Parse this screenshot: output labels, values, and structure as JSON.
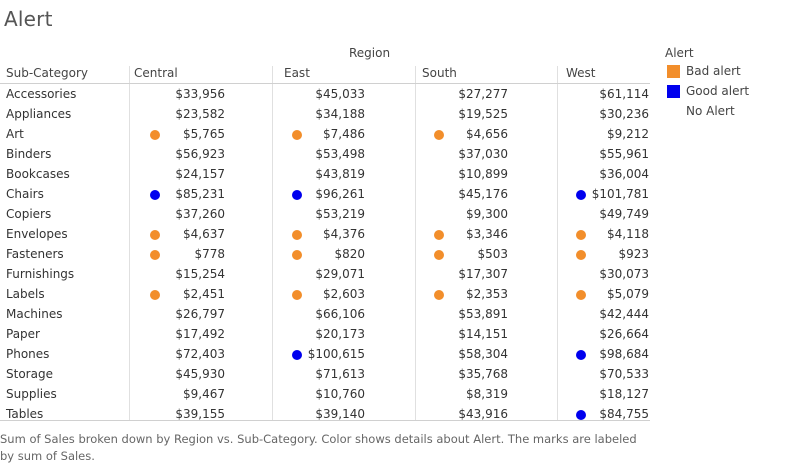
{
  "title": "Alert",
  "caption": "Sum of Sales broken down by Region vs. Sub-Category.  Color shows details about Alert.  The marks are labeled by sum of Sales.",
  "colors": {
    "Bad alert": "#f28e2b",
    "Good alert": "#0000ee",
    "No Alert": ""
  },
  "legend": {
    "title": "Alert",
    "items": [
      {
        "label": "Bad alert",
        "color": "#f28e2b"
      },
      {
        "label": "Good alert",
        "color": "#0000ee"
      },
      {
        "label": "No Alert",
        "color": ""
      }
    ]
  },
  "chart_data": {
    "type": "table",
    "column_group_label": "Region",
    "row_header": "Sub-Category",
    "columns": [
      "Central",
      "East",
      "South",
      "West"
    ],
    "rows": [
      {
        "subcategory": "Accessories",
        "values": [
          "$33,956",
          "$45,033",
          "$27,277",
          "$61,114"
        ],
        "alerts": [
          "No Alert",
          "No Alert",
          "No Alert",
          "No Alert"
        ]
      },
      {
        "subcategory": "Appliances",
        "values": [
          "$23,582",
          "$34,188",
          "$19,525",
          "$30,236"
        ],
        "alerts": [
          "No Alert",
          "No Alert",
          "No Alert",
          "No Alert"
        ]
      },
      {
        "subcategory": "Art",
        "values": [
          "$5,765",
          "$7,486",
          "$4,656",
          "$9,212"
        ],
        "alerts": [
          "Bad alert",
          "Bad alert",
          "Bad alert",
          "No Alert"
        ]
      },
      {
        "subcategory": "Binders",
        "values": [
          "$56,923",
          "$53,498",
          "$37,030",
          "$55,961"
        ],
        "alerts": [
          "No Alert",
          "No Alert",
          "No Alert",
          "No Alert"
        ]
      },
      {
        "subcategory": "Bookcases",
        "values": [
          "$24,157",
          "$43,819",
          "$10,899",
          "$36,004"
        ],
        "alerts": [
          "No Alert",
          "No Alert",
          "No Alert",
          "No Alert"
        ]
      },
      {
        "subcategory": "Chairs",
        "values": [
          "$85,231",
          "$96,261",
          "$45,176",
          "$101,781"
        ],
        "alerts": [
          "Good alert",
          "Good alert",
          "No Alert",
          "Good alert"
        ]
      },
      {
        "subcategory": "Copiers",
        "values": [
          "$37,260",
          "$53,219",
          "$9,300",
          "$49,749"
        ],
        "alerts": [
          "No Alert",
          "No Alert",
          "No Alert",
          "No Alert"
        ]
      },
      {
        "subcategory": "Envelopes",
        "values": [
          "$4,637",
          "$4,376",
          "$3,346",
          "$4,118"
        ],
        "alerts": [
          "Bad alert",
          "Bad alert",
          "Bad alert",
          "Bad alert"
        ]
      },
      {
        "subcategory": "Fasteners",
        "values": [
          "$778",
          "$820",
          "$503",
          "$923"
        ],
        "alerts": [
          "Bad alert",
          "Bad alert",
          "Bad alert",
          "Bad alert"
        ]
      },
      {
        "subcategory": "Furnishings",
        "values": [
          "$15,254",
          "$29,071",
          "$17,307",
          "$30,073"
        ],
        "alerts": [
          "No Alert",
          "No Alert",
          "No Alert",
          "No Alert"
        ]
      },
      {
        "subcategory": "Labels",
        "values": [
          "$2,451",
          "$2,603",
          "$2,353",
          "$5,079"
        ],
        "alerts": [
          "Bad alert",
          "Bad alert",
          "Bad alert",
          "Bad alert"
        ]
      },
      {
        "subcategory": "Machines",
        "values": [
          "$26,797",
          "$66,106",
          "$53,891",
          "$42,444"
        ],
        "alerts": [
          "No Alert",
          "No Alert",
          "No Alert",
          "No Alert"
        ]
      },
      {
        "subcategory": "Paper",
        "values": [
          "$17,492",
          "$20,173",
          "$14,151",
          "$26,664"
        ],
        "alerts": [
          "No Alert",
          "No Alert",
          "No Alert",
          "No Alert"
        ]
      },
      {
        "subcategory": "Phones",
        "values": [
          "$72,403",
          "$100,615",
          "$58,304",
          "$98,684"
        ],
        "alerts": [
          "No Alert",
          "Good alert",
          "No Alert",
          "Good alert"
        ]
      },
      {
        "subcategory": "Storage",
        "values": [
          "$45,930",
          "$71,613",
          "$35,768",
          "$70,533"
        ],
        "alerts": [
          "No Alert",
          "No Alert",
          "No Alert",
          "No Alert"
        ]
      },
      {
        "subcategory": "Supplies",
        "values": [
          "$9,467",
          "$10,760",
          "$8,319",
          "$18,127"
        ],
        "alerts": [
          "No Alert",
          "No Alert",
          "No Alert",
          "No Alert"
        ]
      },
      {
        "subcategory": "Tables",
        "values": [
          "$39,155",
          "$39,140",
          "$43,916",
          "$84,755"
        ],
        "alerts": [
          "No Alert",
          "No Alert",
          "No Alert",
          "Good alert"
        ]
      }
    ]
  }
}
